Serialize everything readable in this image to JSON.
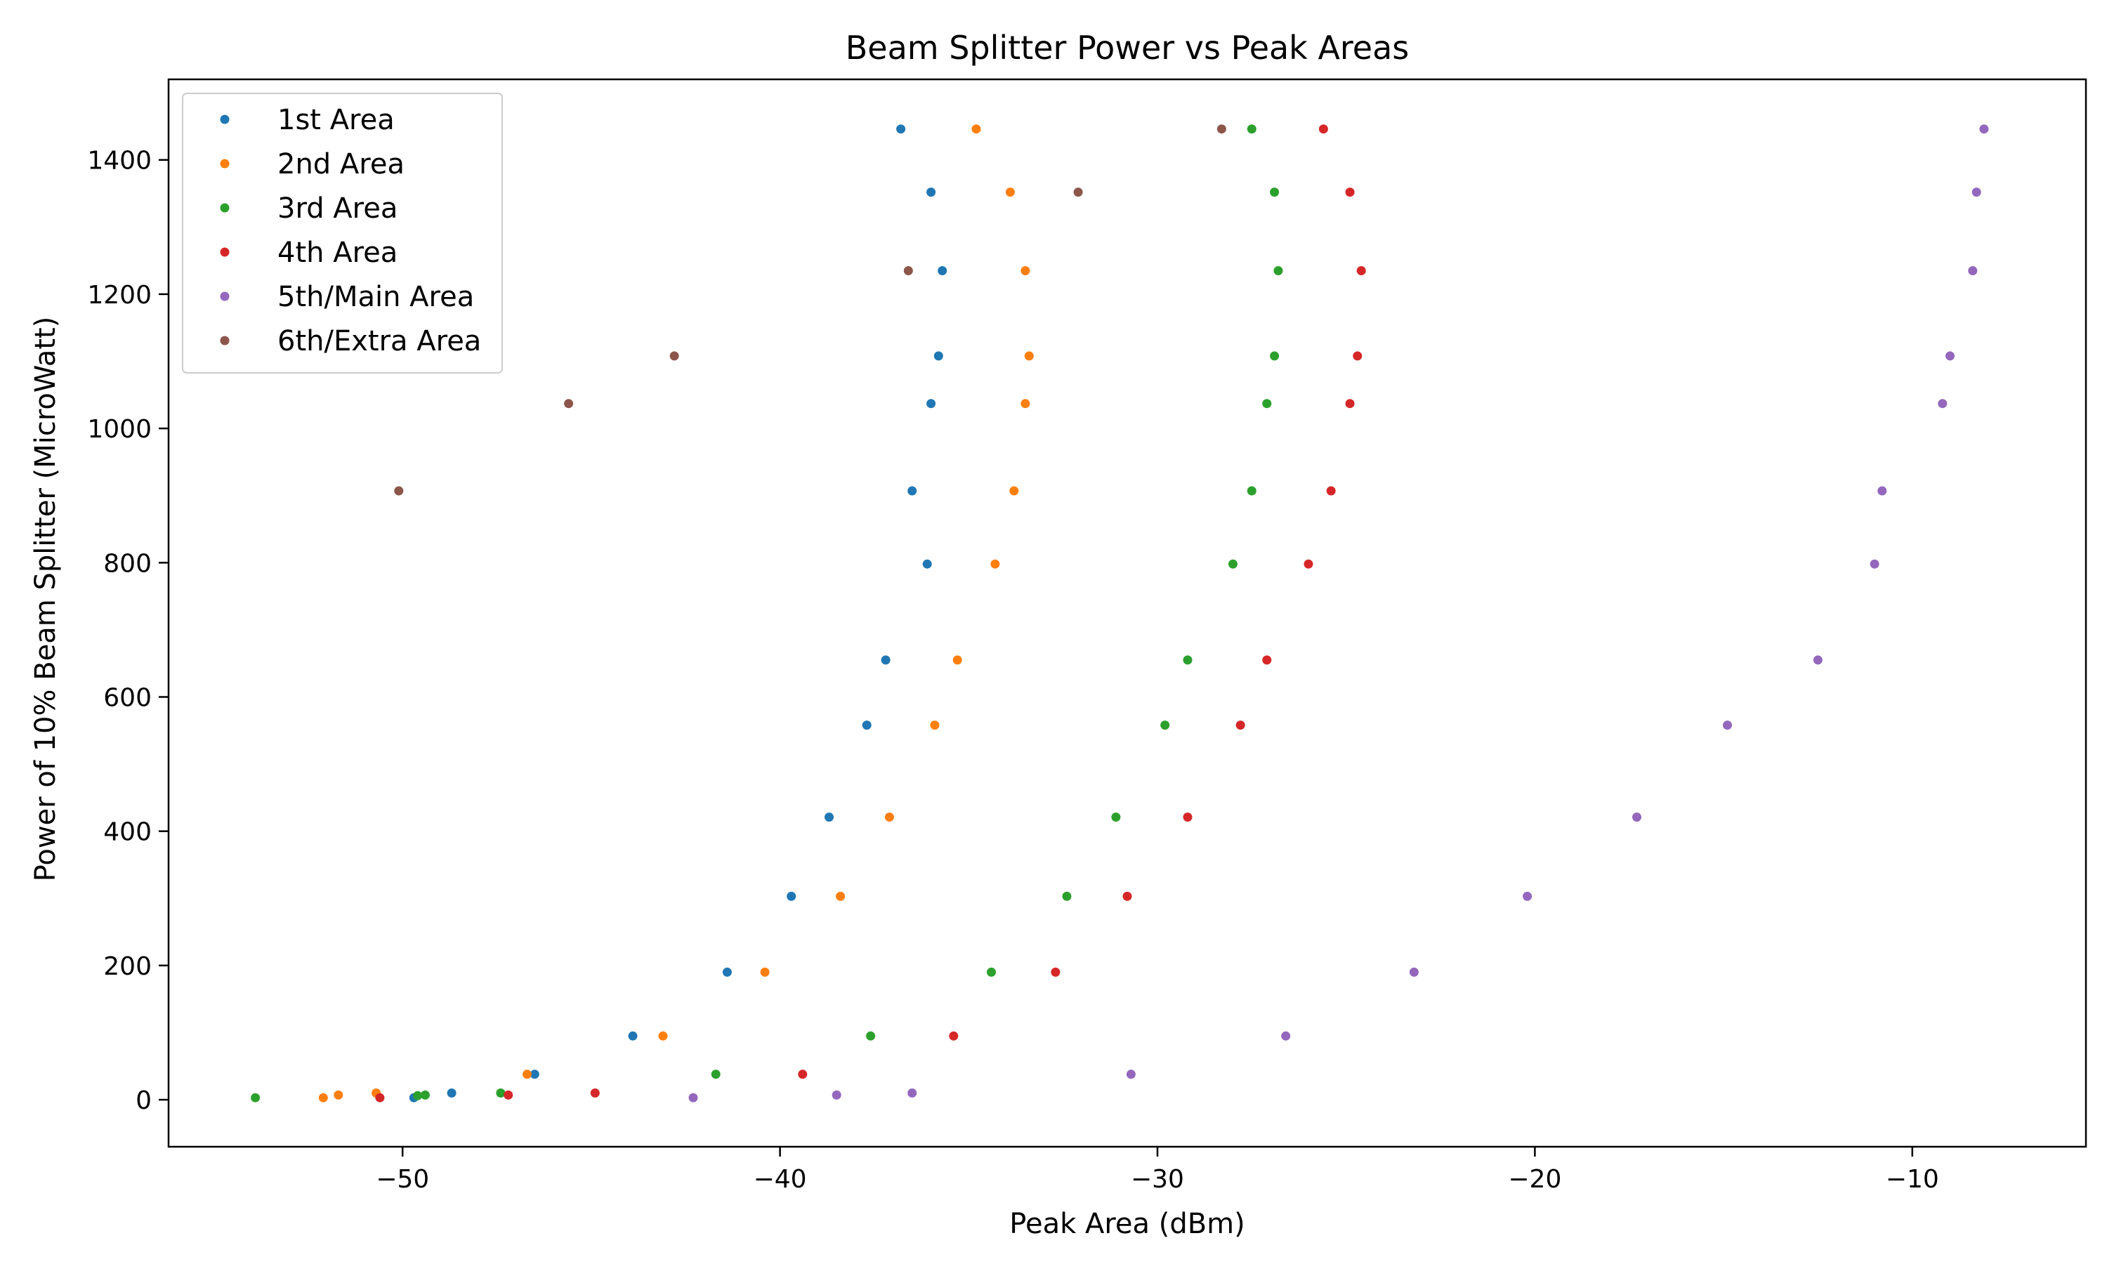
{
  "chart_data": {
    "type": "scatter",
    "title": "Beam Splitter Power vs Peak Areas",
    "xlabel": "Peak Area (dBm)",
    "ylabel": "Power of 10% Beam Splitter (MicroWatt)",
    "xlim": [
      -56.2,
      -5.4
    ],
    "ylim": [
      -70,
      1520
    ],
    "x_ticks": [
      -50,
      -40,
      -30,
      -20,
      -10
    ],
    "x_tick_labels": [
      "−50",
      "−40",
      "−30",
      "−20",
      "−10"
    ],
    "y_ticks": [
      0,
      200,
      400,
      600,
      800,
      1000,
      1200,
      1400
    ],
    "y_tick_labels": [
      "0",
      "200",
      "400",
      "600",
      "800",
      "1000",
      "1200",
      "1400"
    ],
    "grid": false,
    "legend_position": "top-left",
    "series": [
      {
        "name": "1st Area",
        "color": "#1f77b4",
        "points": [
          [
            -49.7,
            3
          ],
          [
            -48.7,
            10
          ],
          [
            -46.5,
            38
          ],
          [
            -43.9,
            95
          ],
          [
            -41.4,
            190
          ],
          [
            -39.7,
            303
          ],
          [
            -38.7,
            421
          ],
          [
            -37.7,
            558
          ],
          [
            -37.2,
            655
          ],
          [
            -36.1,
            798
          ],
          [
            -36.5,
            907
          ],
          [
            -36.0,
            1037
          ],
          [
            -35.8,
            1108
          ],
          [
            -35.7,
            1235
          ],
          [
            -36.0,
            1352
          ],
          [
            -36.8,
            1446
          ]
        ]
      },
      {
        "name": "2nd Area",
        "color": "#ff7f0e",
        "points": [
          [
            -52.1,
            3
          ],
          [
            -51.7,
            7
          ],
          [
            -50.7,
            10
          ],
          [
            -46.7,
            38
          ],
          [
            -43.1,
            95
          ],
          [
            -40.4,
            190
          ],
          [
            -38.4,
            303
          ],
          [
            -37.1,
            421
          ],
          [
            -35.9,
            558
          ],
          [
            -35.3,
            655
          ],
          [
            -34.3,
            798
          ],
          [
            -33.8,
            907
          ],
          [
            -33.5,
            1037
          ],
          [
            -33.4,
            1108
          ],
          [
            -33.5,
            1235
          ],
          [
            -33.9,
            1352
          ],
          [
            -34.8,
            1446
          ]
        ]
      },
      {
        "name": "3rd Area",
        "color": "#2ca02c",
        "points": [
          [
            -53.9,
            3
          ],
          [
            -49.6,
            6
          ],
          [
            -49.4,
            7
          ],
          [
            -47.4,
            10
          ],
          [
            -41.7,
            38
          ],
          [
            -37.6,
            95
          ],
          [
            -34.4,
            190
          ],
          [
            -32.4,
            303
          ],
          [
            -31.1,
            421
          ],
          [
            -29.8,
            558
          ],
          [
            -29.2,
            655
          ],
          [
            -28.0,
            798
          ],
          [
            -27.5,
            907
          ],
          [
            -27.1,
            1037
          ],
          [
            -26.9,
            1108
          ],
          [
            -26.8,
            1235
          ],
          [
            -26.9,
            1352
          ],
          [
            -27.5,
            1446
          ]
        ]
      },
      {
        "name": "4th Area",
        "color": "#d62728",
        "points": [
          [
            -50.6,
            3
          ],
          [
            -47.2,
            7
          ],
          [
            -44.9,
            10
          ],
          [
            -39.4,
            38
          ],
          [
            -35.4,
            95
          ],
          [
            -32.7,
            190
          ],
          [
            -30.8,
            303
          ],
          [
            -29.2,
            421
          ],
          [
            -27.8,
            558
          ],
          [
            -27.1,
            655
          ],
          [
            -26.0,
            798
          ],
          [
            -25.4,
            907
          ],
          [
            -24.9,
            1037
          ],
          [
            -24.7,
            1108
          ],
          [
            -24.6,
            1235
          ],
          [
            -24.9,
            1352
          ],
          [
            -25.6,
            1446
          ]
        ]
      },
      {
        "name": "5th/Main Area",
        "color": "#9467bd",
        "points": [
          [
            -42.3,
            3
          ],
          [
            -38.5,
            7
          ],
          [
            -36.5,
            10
          ],
          [
            -30.7,
            38
          ],
          [
            -26.6,
            95
          ],
          [
            -23.2,
            190
          ],
          [
            -20.2,
            303
          ],
          [
            -17.3,
            421
          ],
          [
            -14.9,
            558
          ],
          [
            -12.5,
            655
          ],
          [
            -11.0,
            798
          ],
          [
            -10.8,
            907
          ],
          [
            -9.2,
            1037
          ],
          [
            -9.0,
            1108
          ],
          [
            -8.4,
            1235
          ],
          [
            -8.3,
            1352
          ],
          [
            -8.1,
            1446
          ]
        ]
      },
      {
        "name": "6th/Extra Area",
        "color": "#8c564b",
        "points": [
          [
            -50.1,
            907
          ],
          [
            -45.6,
            1037
          ],
          [
            -42.8,
            1108
          ],
          [
            -36.6,
            1235
          ],
          [
            -32.1,
            1352
          ],
          [
            -28.3,
            1446
          ]
        ]
      }
    ]
  }
}
